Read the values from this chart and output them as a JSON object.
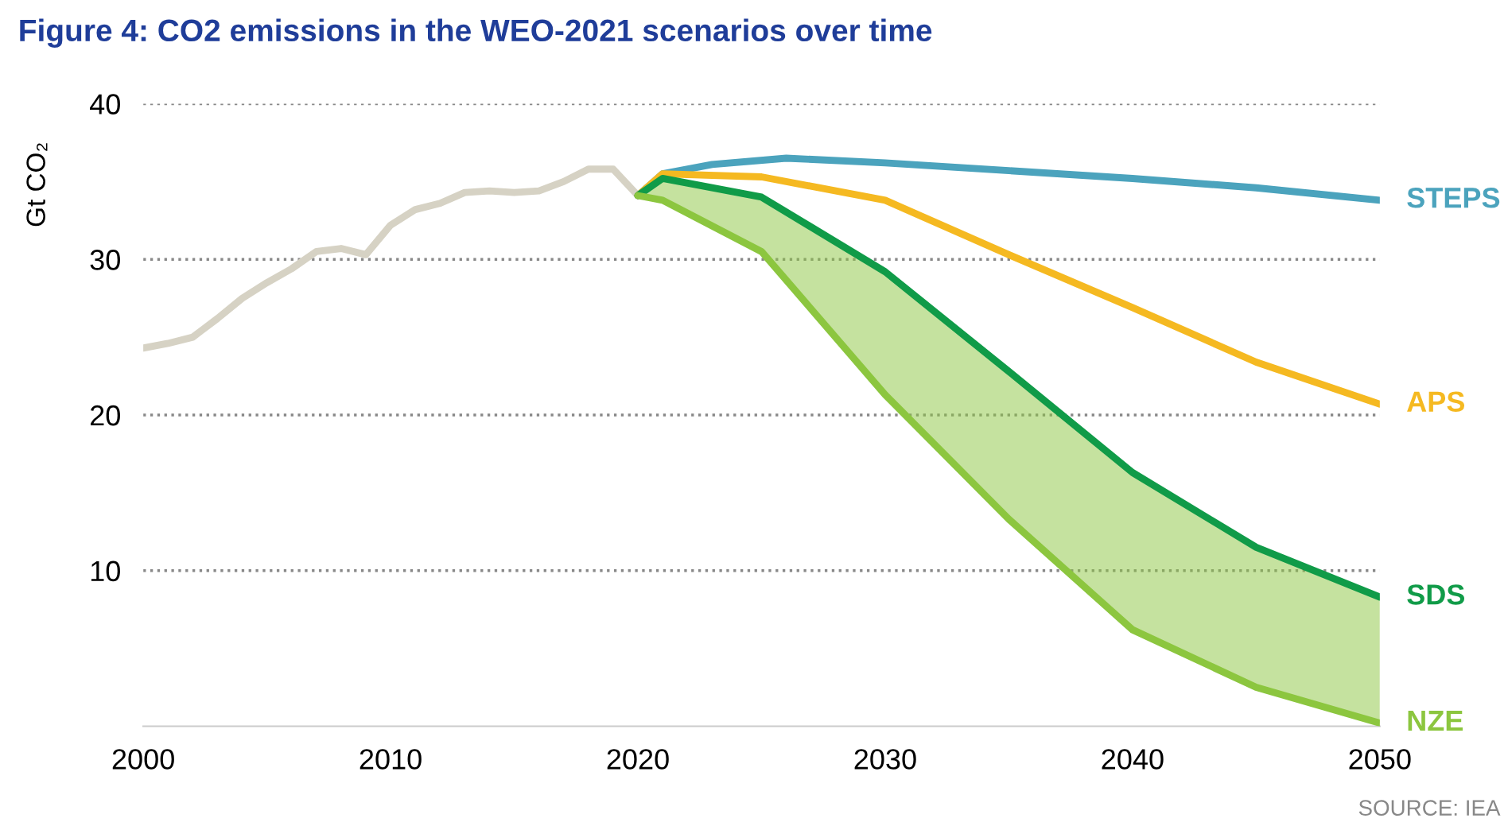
{
  "chart_data": {
    "type": "line",
    "title": "Figure 4: CO2 emissions in the WEO-2021 scenarios over time",
    "ylabel": "Gt CO₂",
    "xlim": [
      2000,
      2050
    ],
    "xticks": [
      2000,
      2010,
      2020,
      2030,
      2040,
      2050
    ],
    "ylim": [
      0,
      40
    ],
    "yticks": [
      10,
      20,
      30,
      40
    ],
    "grid": "y",
    "line_style": "solid",
    "marker": "none",
    "series": [
      {
        "color": "#d6d2c4",
        "x": [
          2000,
          2001,
          2002,
          2003,
          2004,
          2005,
          2006,
          2007,
          2008,
          2009,
          2010,
          2011,
          2012,
          2013,
          2014,
          2015,
          2016,
          2017,
          2018,
          2019,
          2020
        ],
        "values": [
          24.3,
          24.6,
          25.0,
          26.2,
          27.5,
          28.5,
          29.4,
          30.5,
          30.7,
          30.3,
          32.2,
          33.2,
          33.6,
          34.3,
          34.4,
          34.3,
          34.4,
          35.0,
          35.8,
          35.8,
          34.1
        ]
      },
      {
        "name": "STEPS",
        "color": "#4ba3bd",
        "x": [
          2020,
          2021,
          2023,
          2026,
          2030,
          2035,
          2040,
          2045,
          2050
        ],
        "values": [
          34.1,
          35.5,
          36.1,
          36.5,
          36.2,
          35.7,
          35.2,
          34.6,
          33.8
        ]
      },
      {
        "name": "APS",
        "color": "#f5b921",
        "x": [
          2020,
          2021,
          2025,
          2030,
          2035,
          2040,
          2045,
          2050
        ],
        "values": [
          34.1,
          35.5,
          35.3,
          33.8,
          30.3,
          26.9,
          23.4,
          20.7
        ]
      },
      {
        "name": "SDS",
        "color": "#109b48",
        "x": [
          2020,
          2021,
          2025,
          2030,
          2035,
          2040,
          2045,
          2050
        ],
        "values": [
          34.1,
          35.2,
          34.0,
          29.2,
          22.8,
          16.3,
          11.5,
          8.3
        ],
        "lower": [
          34.1,
          33.8,
          30.5,
          21.3,
          13.3,
          6.2,
          2.5,
          0.2
        ],
        "upper": [
          34.1,
          35.2,
          34.0,
          29.2,
          22.8,
          16.3,
          11.5,
          8.3
        ]
      },
      {
        "name": "NZE",
        "color": "#8cc63f",
        "x": [
          2020,
          2021,
          2025,
          2030,
          2035,
          2040,
          2045,
          2050
        ],
        "values": [
          34.1,
          33.8,
          30.5,
          21.3,
          13.3,
          6.2,
          2.5,
          0.2
        ]
      }
    ],
    "annotations": [
      "SOURCE: IEA"
    ]
  }
}
